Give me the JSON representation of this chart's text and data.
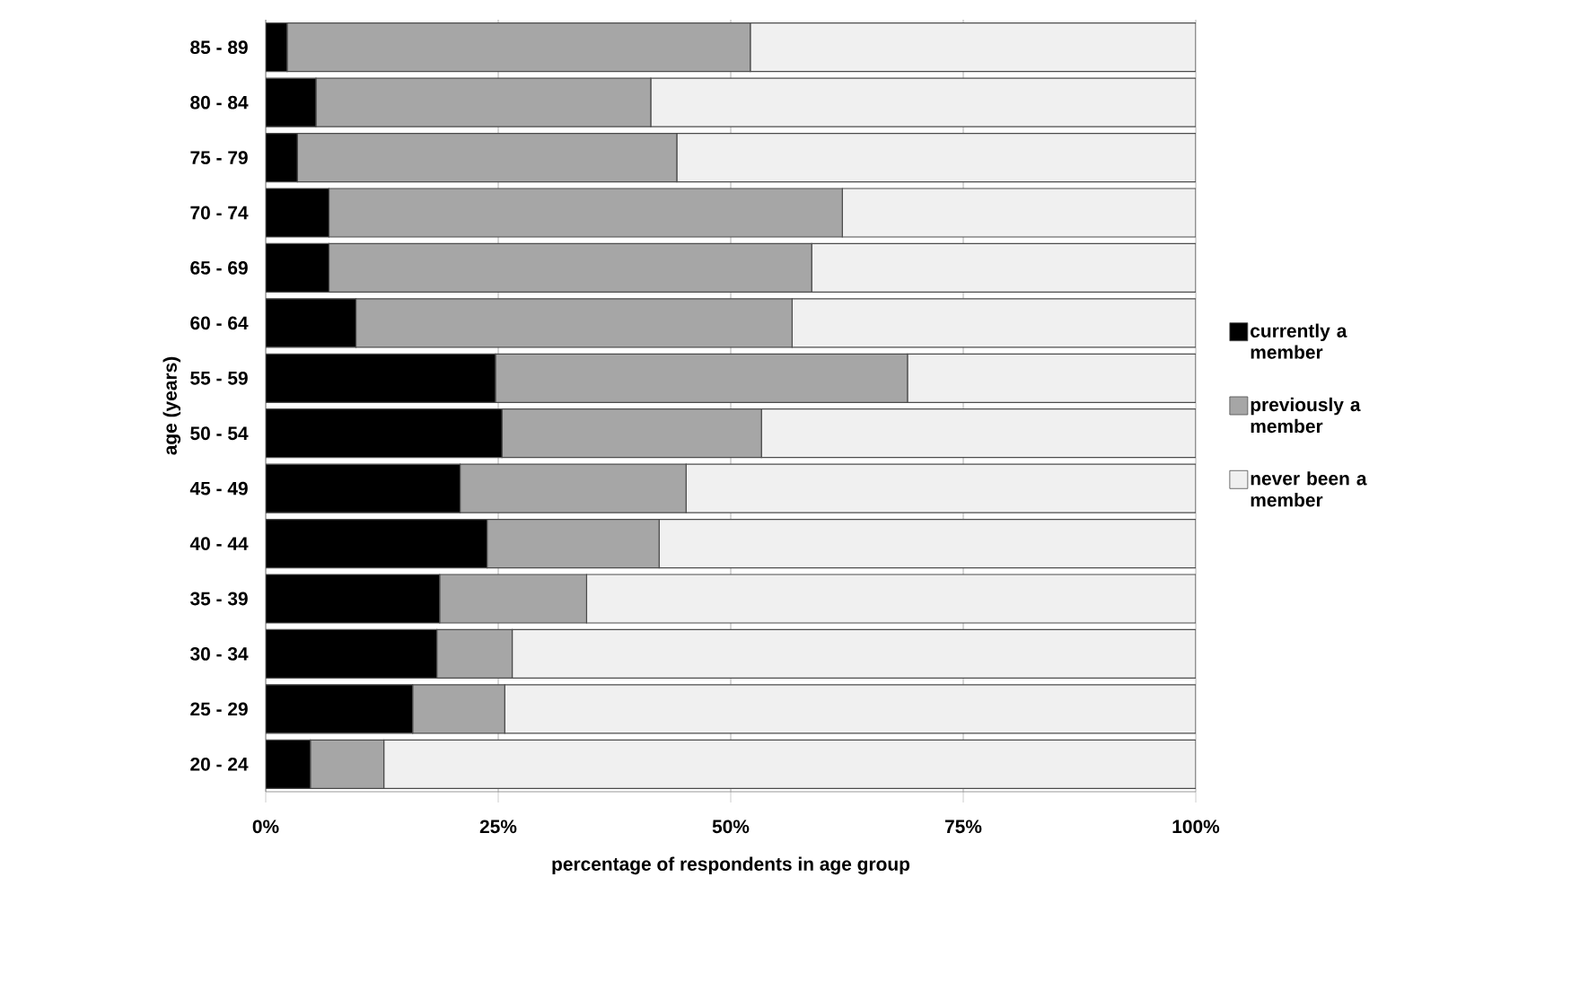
{
  "chart_data": {
    "type": "bar",
    "orientation": "horizontal",
    "stacked": true,
    "xlabel": "percentage of respondents in age group",
    "ylabel": "age (years)",
    "categories": [
      "85 - 89",
      "80 - 84",
      "75 - 79",
      "70 - 74",
      "65 - 69",
      "60 - 64",
      "55 - 59",
      "50 - 54",
      "45 - 49",
      "40 - 44",
      "35 - 39",
      "30 - 34",
      "25 - 29",
      "20 - 24"
    ],
    "series": [
      {
        "name": "currently a member",
        "color": "#000000",
        "values": [
          2.3,
          5.4,
          3.4,
          6.8,
          6.8,
          9.7,
          24.7,
          25.4,
          20.9,
          23.8,
          18.7,
          18.4,
          15.8,
          4.8
        ]
      },
      {
        "name": "previously a member",
        "color": "#a6a6a6",
        "values": [
          49.8,
          36.0,
          40.8,
          55.2,
          51.9,
          46.9,
          44.3,
          27.9,
          24.3,
          18.5,
          15.8,
          8.1,
          9.9,
          7.9
        ]
      },
      {
        "name": "never been a member",
        "color": "#f0f0f0",
        "values": [
          47.9,
          58.6,
          55.8,
          38.0,
          41.3,
          43.4,
          31.0,
          46.7,
          54.8,
          57.7,
          65.5,
          73.5,
          74.3,
          87.3
        ]
      }
    ],
    "xlim": [
      0,
      100
    ],
    "xticks": [
      {
        "value": 0,
        "label": "0%"
      },
      {
        "value": 25,
        "label": "25%"
      },
      {
        "value": 50,
        "label": "50%"
      },
      {
        "value": 75,
        "label": "75%"
      },
      {
        "value": 100,
        "label": "100%"
      }
    ],
    "grid": "x",
    "legend": "right"
  }
}
